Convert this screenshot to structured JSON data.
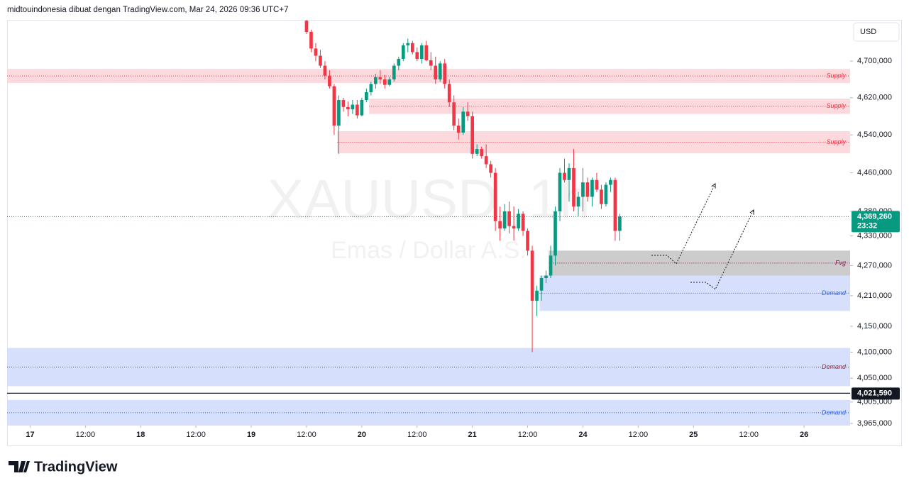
{
  "header": "midtouindonesia dibuat dengan TradingView.com, Mar 24, 2026 09:36 UTC+7",
  "currency": "USD",
  "logo": "TradingView",
  "chart_data": {
    "type": "candlestick",
    "watermark": [
      "XAUUSD, 1h",
      "Emas / Dollar A.S."
    ],
    "log_scale": true,
    "up_color": "#089981",
    "down_color": "#f23645",
    "xlim": [
      -5,
      178
    ],
    "ylim": [
      3961000,
      4792000
    ],
    "xticks": [
      {
        "value": 0,
        "label": "17"
      },
      {
        "value": 12,
        "label": "12:00"
      },
      {
        "value": 24,
        "label": "18"
      },
      {
        "value": 36,
        "label": "12:00"
      },
      {
        "value": 48,
        "label": "19"
      },
      {
        "value": 60,
        "label": "12:00"
      },
      {
        "value": 72,
        "label": "20"
      },
      {
        "value": 84,
        "label": "12:00"
      },
      {
        "value": 96,
        "label": "21"
      },
      {
        "value": 108,
        "label": "12:00"
      },
      {
        "value": 120,
        "label": "24"
      },
      {
        "value": 132,
        "label": "12:00"
      },
      {
        "value": 144,
        "label": "25"
      },
      {
        "value": 156,
        "label": "12:00"
      },
      {
        "value": 168,
        "label": "26"
      }
    ],
    "yticks": [
      {
        "value": 4700000,
        "label": "4,700,000"
      },
      {
        "value": 4620000,
        "label": "4,620,000"
      },
      {
        "value": 4540000,
        "label": "4,540,000"
      },
      {
        "value": 4460000,
        "label": "4,460,000"
      },
      {
        "value": 4380000,
        "label": "4,380,000"
      },
      {
        "value": 4330000,
        "label": "4,330,000"
      },
      {
        "value": 4270000,
        "label": "4,270,000"
      },
      {
        "value": 4210000,
        "label": "4,210,000"
      },
      {
        "value": 4150000,
        "label": "4,150,000"
      },
      {
        "value": 4100000,
        "label": "4,100,000"
      },
      {
        "value": 4050000,
        "label": "4,050,000"
      },
      {
        "value": 4005000,
        "label": "4,005,000"
      },
      {
        "value": 3965000,
        "label": "3,965,000"
      }
    ],
    "x": [
      60,
      61,
      62,
      63,
      64,
      65,
      66,
      67,
      68,
      69,
      70,
      71,
      72,
      73,
      74,
      75,
      76,
      77,
      78,
      79,
      80,
      81,
      82,
      83,
      84,
      85,
      86,
      87,
      88,
      89,
      90,
      91,
      92,
      93,
      94,
      95,
      96,
      97,
      98,
      99,
      100,
      101,
      102,
      103,
      104,
      105,
      106,
      107,
      108,
      109,
      110,
      111,
      112,
      113,
      114,
      115,
      116,
      117,
      118,
      119,
      120,
      121,
      122,
      123,
      124,
      125,
      126,
      127,
      128
    ],
    "open": [
      4790000,
      4765000,
      4728000,
      4712000,
      4690000,
      4668000,
      4645000,
      4560000,
      4615000,
      4600000,
      4595000,
      4605000,
      4582000,
      4615000,
      4632000,
      4650000,
      4665000,
      4660000,
      4648000,
      4660000,
      4690000,
      4705000,
      4735000,
      4740000,
      4720000,
      4705000,
      4735000,
      4702000,
      4690000,
      4660000,
      4695000,
      4650000,
      4610000,
      4560000,
      4545000,
      4590000,
      4580000,
      4500000,
      4510000,
      4495000,
      4478000,
      4460000,
      4360000,
      4345000,
      4380000,
      4350000,
      4345000,
      4375000,
      4340000,
      4300000,
      4200000,
      4220000,
      4245000,
      4250000,
      4290000,
      4380000,
      4460000,
      4445000,
      4470000,
      4390000,
      4410000,
      4440000,
      4410000,
      4445000,
      4425000,
      4395000,
      4435000,
      4445000,
      4340000
    ],
    "high": [
      4800000,
      4770000,
      4740000,
      4725000,
      4700000,
      4680000,
      4650000,
      4625000,
      4620000,
      4612000,
      4615000,
      4615000,
      4620000,
      4640000,
      4655000,
      4672000,
      4680000,
      4670000,
      4665000,
      4695000,
      4710000,
      4740000,
      4750000,
      4745000,
      4730000,
      4740000,
      4745000,
      4720000,
      4710000,
      4700000,
      4705000,
      4660000,
      4625000,
      4575000,
      4600000,
      4610000,
      4590000,
      4520000,
      4515000,
      4520000,
      4485000,
      4470000,
      4390000,
      4395000,
      4400000,
      4390000,
      4385000,
      4380000,
      4345000,
      4310000,
      4230000,
      4250000,
      4260000,
      4310000,
      4390000,
      4470000,
      4490000,
      4480000,
      4510000,
      4420000,
      4470000,
      4450000,
      4450000,
      4460000,
      4435000,
      4440000,
      4450000,
      4450000,
      4375000
    ],
    "low": [
      4760000,
      4720000,
      4700000,
      4685000,
      4660000,
      4640000,
      4540000,
      4500000,
      4590000,
      4580000,
      4585000,
      4575000,
      4580000,
      4610000,
      4625000,
      4640000,
      4650000,
      4640000,
      4645000,
      4655000,
      4680000,
      4700000,
      4720000,
      4715000,
      4700000,
      4695000,
      4700000,
      4680000,
      4650000,
      4655000,
      4640000,
      4600000,
      4550000,
      4530000,
      4540000,
      4570000,
      4490000,
      4495000,
      4490000,
      4470000,
      4450000,
      4340000,
      4320000,
      4340000,
      4335000,
      4320000,
      4340000,
      4330000,
      4290000,
      4100000,
      4170000,
      4200000,
      4235000,
      4245000,
      4270000,
      4360000,
      4440000,
      4400000,
      4380000,
      4370000,
      4380000,
      4400000,
      4390000,
      4420000,
      4385000,
      4390000,
      4420000,
      4320000,
      4320000
    ],
    "close": [
      4765000,
      4728000,
      4712000,
      4690000,
      4668000,
      4645000,
      4560000,
      4615000,
      4600000,
      4595000,
      4605000,
      4582000,
      4615000,
      4632000,
      4650000,
      4665000,
      4660000,
      4648000,
      4660000,
      4690000,
      4705000,
      4735000,
      4740000,
      4720000,
      4705000,
      4735000,
      4702000,
      4690000,
      4660000,
      4695000,
      4650000,
      4610000,
      4560000,
      4545000,
      4590000,
      4580000,
      4500000,
      4510000,
      4495000,
      4478000,
      4460000,
      4360000,
      4345000,
      4380000,
      4350000,
      4345000,
      4375000,
      4340000,
      4300000,
      4200000,
      4220000,
      4245000,
      4250000,
      4290000,
      4380000,
      4460000,
      4445000,
      4470000,
      4390000,
      4410000,
      4440000,
      4410000,
      4445000,
      4425000,
      4395000,
      4435000,
      4445000,
      4340000,
      4369260
    ],
    "zones": [
      {
        "label": "Supply",
        "from": 4652000,
        "to": 4683000,
        "fill": "#fcd9dc",
        "color": "#f23645"
      },
      {
        "label": "Supply",
        "from": 4585000,
        "to": 4618000,
        "start": 73.6,
        "fill": "#fcd9dc",
        "color": "#f23645"
      },
      {
        "label": "Supply",
        "from": 4501000,
        "to": 4548000,
        "start": 66.7,
        "fill": "#fcd9dc",
        "color": "#f23645"
      },
      {
        "label": "Fvg",
        "from": 4250000,
        "to": 4300000,
        "start": 112.6,
        "fill": "#cccccc",
        "color": "#880e4f"
      },
      {
        "label": "Demand",
        "from": 4180000,
        "to": 4250000,
        "start": 110.6,
        "fill": "#d6e0fc",
        "color": "#2962ff"
      },
      {
        "label": "Demand",
        "from": 4035000,
        "to": 4108000,
        "fill": "#d6e0fc",
        "color": "#b22833"
      },
      {
        "label": "Demand",
        "from": 3961000,
        "to": 4009000,
        "fill": "#d6e0fc",
        "color": "#2962ff"
      }
    ],
    "hline": {
      "value": 4021590,
      "label": "4,021,590",
      "color": "#131722"
    },
    "last_price": {
      "value": 4369260,
      "label": "4,369,260",
      "countdown": "23:32",
      "color": "#089981"
    }
  }
}
